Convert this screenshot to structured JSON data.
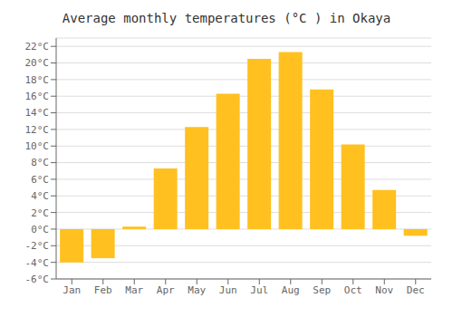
{
  "chart_data": {
    "type": "bar",
    "title": "Average monthly temperatures (°C ) in Okaya",
    "categories": [
      "Jan",
      "Feb",
      "Mar",
      "Apr",
      "May",
      "Jun",
      "Jul",
      "Aug",
      "Sep",
      "Oct",
      "Nov",
      "Dec"
    ],
    "values": [
      -4.0,
      -3.5,
      0.3,
      7.3,
      12.3,
      16.3,
      20.5,
      21.3,
      16.8,
      10.2,
      4.7,
      -0.8
    ],
    "color": "#FFC020",
    "ylim": [
      -6,
      23
    ],
    "yticks": [
      {
        "value": -6,
        "label": "-6°C"
      },
      {
        "value": -4,
        "label": "-4°C"
      },
      {
        "value": -2,
        "label": "-2°C"
      },
      {
        "value": 0,
        "label": "0°C"
      },
      {
        "value": 2,
        "label": "2°C"
      },
      {
        "value": 4,
        "label": "4°C"
      },
      {
        "value": 6,
        "label": "6°C"
      },
      {
        "value": 8,
        "label": "8°C"
      },
      {
        "value": 10,
        "label": "10°C"
      },
      {
        "value": 12,
        "label": "12°C"
      },
      {
        "value": 14,
        "label": "14°C"
      },
      {
        "value": 16,
        "label": "16°C"
      },
      {
        "value": 18,
        "label": "18°C"
      },
      {
        "value": 20,
        "label": "20°C"
      },
      {
        "value": 22,
        "label": "22°C"
      }
    ],
    "grid": true
  }
}
